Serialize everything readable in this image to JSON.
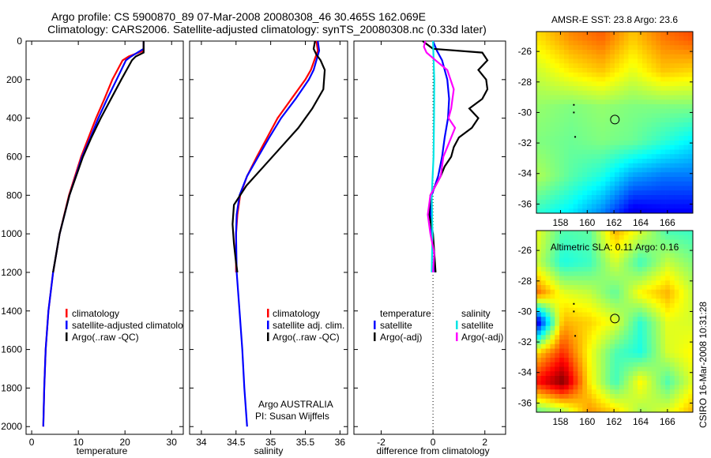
{
  "title": {
    "line1": "Argo profile: CS 5900870_89 07-Mar-2008 20080308_46 30.465S 162.069E",
    "line2": "Climatology: CARS2006. Satellite-adjusted climatology: synTS_20080308.nc (0.33d later)"
  },
  "footer_stamp": "CSIRO 16-Mar-2008 10:31:28",
  "colors": {
    "climatology": "#ff0000",
    "satellite": "#0000ff",
    "argo": "#000000",
    "sal_satellite": "#00e5e5",
    "sal_argo": "#ff00ff"
  },
  "chart_data": [
    {
      "type": "line",
      "xlabel": "temperature",
      "ylabel": "",
      "xlim": [
        -1.2,
        32.5
      ],
      "ylim": [
        2040,
        0
      ],
      "xticks": [
        0,
        10,
        20,
        30
      ],
      "yticks": [
        0,
        200,
        400,
        600,
        800,
        1000,
        1200,
        1400,
        1600,
        1800,
        2000
      ],
      "legend": [
        "climatology",
        "satellite-adjusted climatology",
        "Argo(..raw -QC)"
      ],
      "series": [
        {
          "name": "climatology",
          "color": "#ff0000",
          "depth": [
            0,
            50,
            80,
            100,
            200,
            300,
            400,
            500,
            600,
            800,
            1000,
            1200,
            1400,
            1600,
            1800,
            2000
          ],
          "values": [
            24,
            24,
            20.8,
            19.5,
            17.3,
            15.6,
            13.8,
            12.2,
            10.6,
            8.0,
            6.0,
            4.6,
            3.6,
            3.0,
            2.7,
            2.5
          ]
        },
        {
          "name": "satellite-adjusted climatology",
          "color": "#0000ff",
          "depth": [
            0,
            40,
            80,
            100,
            200,
            300,
            400,
            500,
            600,
            800,
            1000,
            1200,
            1400,
            1600,
            1800,
            2000
          ],
          "values": [
            24,
            24,
            21.3,
            20.2,
            18.2,
            16.2,
            14.3,
            12.6,
            10.8,
            8.1,
            6.0,
            4.6,
            3.6,
            3.0,
            2.7,
            2.5
          ]
        },
        {
          "name": "Argo(..raw -QC)",
          "color": "#000000",
          "depth": [
            0,
            60,
            80,
            100,
            200,
            300,
            400,
            500,
            600,
            800,
            1000,
            1200
          ],
          "values": [
            24,
            24,
            22.3,
            21.5,
            19.2,
            17.0,
            14.8,
            12.8,
            11.0,
            8.1,
            6.0,
            4.6
          ]
        }
      ]
    },
    {
      "type": "line",
      "xlabel": "salinity",
      "xlim": [
        33.83,
        36.11
      ],
      "ylim": [
        2040,
        0
      ],
      "xticks": [
        34,
        34.5,
        35,
        35.5,
        36
      ],
      "legend": [
        "climatology",
        "satellite adj. clim.",
        "Argo(..raw -QC)"
      ],
      "annotation": [
        "Argo AUSTRALIA",
        "PI: Susan Wijffels"
      ],
      "series": [
        {
          "name": "climatology",
          "color": "#ff0000",
          "depth": [
            0,
            50,
            100,
            150,
            200,
            300,
            400,
            500,
            600,
            700,
            800,
            900,
            1000,
            1100,
            1200
          ],
          "values": [
            35.66,
            35.68,
            35.63,
            35.58,
            35.5,
            35.3,
            35.1,
            34.95,
            34.8,
            34.66,
            34.56,
            34.52,
            34.5,
            34.5,
            34.5
          ]
        },
        {
          "name": "satellite adj. clim.",
          "color": "#0000ff",
          "depth": [
            0,
            50,
            100,
            150,
            200,
            300,
            400,
            500,
            600,
            700,
            800,
            900,
            1000,
            1200,
            1400,
            1600,
            1800,
            2000
          ],
          "values": [
            35.68,
            35.7,
            35.66,
            35.62,
            35.55,
            35.36,
            35.15,
            34.98,
            34.82,
            34.66,
            34.55,
            34.51,
            34.5,
            34.51,
            34.55,
            34.59,
            34.62,
            34.66
          ]
        },
        {
          "name": "Argo(..raw -QC)",
          "color": "#000000",
          "depth": [
            0,
            40,
            70,
            100,
            150,
            250,
            350,
            450,
            550,
            650,
            750,
            850,
            950,
            1050,
            1150,
            1200
          ],
          "values": [
            35.64,
            35.62,
            35.66,
            35.72,
            35.78,
            35.76,
            35.6,
            35.4,
            35.15,
            34.9,
            34.65,
            34.47,
            34.45,
            34.47,
            34.5,
            34.52
          ]
        }
      ]
    },
    {
      "type": "line",
      "xlabel": "difference from climatology",
      "xlim": [
        -3.05,
        2.8
      ],
      "ylim": [
        2040,
        0
      ],
      "xticks": [
        -2,
        0,
        2
      ],
      "legend_headers": [
        "temperature",
        "salinity"
      ],
      "legend": [
        "satellite",
        "Argo(-adj)",
        "satellite",
        "Argo(-adj)"
      ],
      "series": [
        {
          "name": "temperature satellite",
          "color": "#0000ff",
          "depth": [
            0,
            50,
            100,
            200,
            300,
            400,
            500,
            600,
            700,
            800,
            900,
            1000,
            1100,
            1200
          ],
          "values": [
            0,
            0.15,
            0.35,
            0.55,
            0.62,
            0.58,
            0.45,
            0.35,
            0.2,
            -0.05,
            -0.1,
            -0.05,
            0.05,
            0.08
          ]
        },
        {
          "name": "temperature Argo(-adj)",
          "color": "#000000",
          "depth": [
            0,
            40,
            60,
            100,
            150,
            200,
            250,
            300,
            350,
            400,
            450,
            500,
            550,
            600,
            650,
            700,
            800,
            900,
            1000,
            1100,
            1200
          ],
          "values": [
            -0.4,
            0,
            1.9,
            2.1,
            1.75,
            2.05,
            2.1,
            1.9,
            1.4,
            1.75,
            1.5,
            1.0,
            0.8,
            0.7,
            0.45,
            0.3,
            -0.1,
            -0.15,
            0,
            0.05,
            0.1
          ]
        },
        {
          "name": "salinity satellite",
          "color": "#00e5e5",
          "depth": [
            0,
            200,
            400,
            600,
            800,
            1000,
            1200
          ],
          "values": [
            0,
            0.05,
            0.04,
            0.02,
            -0.05,
            -0.02,
            -0.05
          ]
        },
        {
          "name": "salinity Argo(-adj)",
          "color": "#ff00ff",
          "depth": [
            0,
            30,
            60,
            100,
            150,
            250,
            350,
            400,
            450,
            500,
            550,
            600,
            700,
            800,
            900,
            1000,
            1100,
            1200
          ],
          "values": [
            -0.3,
            -0.35,
            -0.25,
            0.1,
            0.55,
            0.8,
            0.7,
            0.6,
            0.85,
            0.7,
            0.55,
            0.4,
            0.3,
            -0.1,
            -0.2,
            -0.1,
            0.05,
            0
          ]
        }
      ]
    },
    {
      "type": "heatmap",
      "title": "AMSR-E SST: 23.8 Argo: 23.6",
      "xlim": [
        156.2,
        167.9
      ],
      "ylim": [
        -36.6,
        -24.7
      ],
      "xticks": [
        158,
        160,
        162,
        164,
        166
      ],
      "yticks": [
        -26,
        -28,
        -30,
        -32,
        -34,
        -36
      ],
      "clim": [
        21,
        26
      ],
      "lon": [
        156.5,
        158.8,
        161.1,
        163.4,
        165.7,
        167.9
      ],
      "lat": [
        -25,
        -27.3,
        -29.6,
        -31.9,
        -34.2,
        -36.5
      ],
      "values": [
        [
          24.3,
          24.7,
          24.9,
          24.4,
          24.8,
          25.0
        ],
        [
          23.9,
          24.2,
          24.4,
          24.0,
          24.4,
          24.3
        ],
        [
          23.6,
          23.5,
          23.6,
          23.5,
          23.5,
          23.5
        ],
        [
          23.5,
          23.4,
          23.5,
          23.4,
          23.1,
          22.8
        ],
        [
          23.7,
          23.3,
          23.0,
          22.4,
          22.2,
          22.2
        ],
        [
          23.1,
          22.8,
          22.3,
          21.5,
          21.6,
          21.6
        ]
      ],
      "argo": {
        "lon": 162.069,
        "lat": -30.465
      },
      "marks": [
        {
          "lon": 159.0,
          "lat": -29.5
        },
        {
          "lon": 159.0,
          "lat": -30.0
        },
        {
          "lon": 159.1,
          "lat": -31.6
        }
      ]
    },
    {
      "type": "heatmap",
      "title": "Altimetric SLA: 0.11 Argo: 0.16",
      "xlim": [
        156.2,
        167.9
      ],
      "ylim": [
        -36.6,
        -24.7
      ],
      "xticks": [
        158,
        160,
        162,
        164,
        166
      ],
      "yticks": [
        -26,
        -28,
        -30,
        -32,
        -34,
        -36
      ],
      "clim": [
        -0.3,
        0.3
      ],
      "lon": [
        156.3,
        158.2,
        160.2,
        162.1,
        164.0,
        166.0,
        167.9
      ],
      "lat": [
        -24.8,
        -26.8,
        -28.8,
        -30.7,
        -32.7,
        -34.6,
        -36.6
      ],
      "values": [
        [
          0.06,
          -0.03,
          -0.02,
          0.12,
          0.05,
          -0.03,
          -0.04
        ],
        [
          0.04,
          -0.06,
          -0.04,
          0.05,
          -0.04,
          0.04,
          0.0
        ],
        [
          0.16,
          0.06,
          0.04,
          -0.02,
          0.08,
          0.12,
          0.04
        ],
        [
          -0.25,
          0.12,
          0.1,
          0.06,
          -0.05,
          0.06,
          0.05
        ],
        [
          0.1,
          0.2,
          0.07,
          -0.03,
          -0.06,
          0.05,
          0.08
        ],
        [
          0.22,
          0.3,
          0.08,
          -0.04,
          0.08,
          -0.03,
          0.06
        ],
        [
          -0.02,
          0.02,
          0.14,
          0.1,
          0.02,
          0.06,
          0.12
        ]
      ],
      "argo": {
        "lon": 162.069,
        "lat": -30.465
      },
      "marks": [
        {
          "lon": 159.0,
          "lat": -29.5
        },
        {
          "lon": 159.0,
          "lat": -30.0
        },
        {
          "lon": 159.1,
          "lat": -31.6
        }
      ]
    }
  ]
}
